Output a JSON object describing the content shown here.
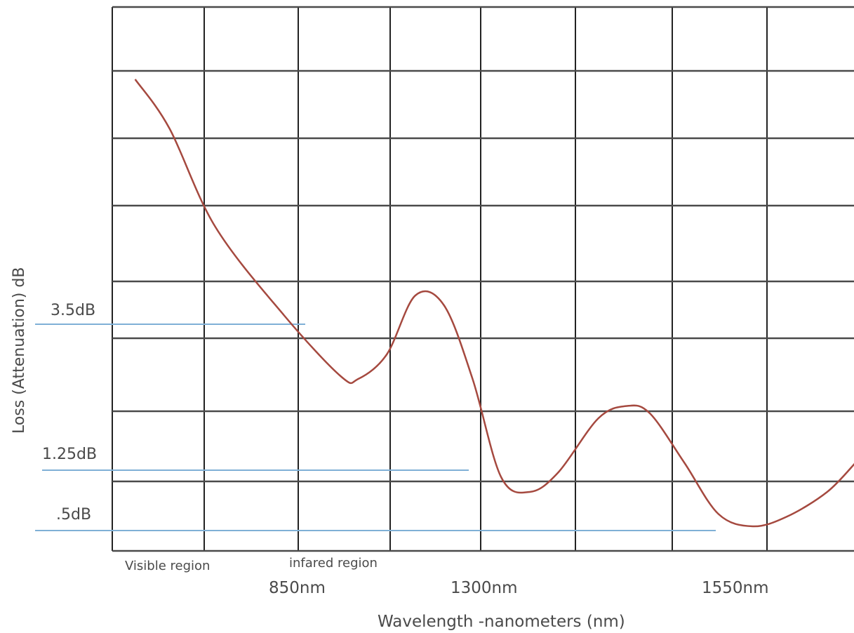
{
  "chart_data": {
    "type": "line",
    "title": "",
    "xlabel": "Wavelength -nanometers (nm)",
    "ylabel": "Loss (Attenuation) dB",
    "x_tick_labels": [
      "850nm",
      "1300nm",
      "1550nm"
    ],
    "y_reference_labels": [
      "3.5dB",
      "1.25dB",
      ".5dB"
    ],
    "region_labels": [
      "Visible region",
      "infared region"
    ],
    "series": [
      {
        "color": "#a5493f",
        "values": [
          [
            0.4,
            9.6
          ],
          [
            1.0,
            8.6
          ],
          [
            1.8,
            6.6
          ],
          [
            3.0,
            4.8
          ],
          [
            4.0,
            3.55
          ],
          [
            4.3,
            3.5
          ],
          [
            4.8,
            4.0
          ],
          [
            5.3,
            5.2
          ],
          [
            5.8,
            5.0
          ],
          [
            6.3,
            3.5
          ],
          [
            6.8,
            1.5
          ],
          [
            7.3,
            1.2
          ],
          [
            7.8,
            1.6
          ],
          [
            8.5,
            2.7
          ],
          [
            9.0,
            2.95
          ],
          [
            9.4,
            2.8
          ],
          [
            10.0,
            1.8
          ],
          [
            10.6,
            0.75
          ],
          [
            11.2,
            0.5
          ],
          [
            11.8,
            0.7
          ],
          [
            12.5,
            1.2
          ],
          [
            13.0,
            1.8
          ]
        ]
      }
    ],
    "grid": true
  }
}
